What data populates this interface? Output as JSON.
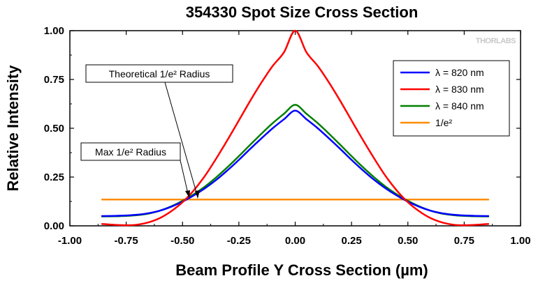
{
  "chart_data": {
    "type": "line",
    "title": "354330 Spot Size Cross Section",
    "xlabel": "Beam Profile Y Cross Section (µm)",
    "ylabel": "Relative Intensity",
    "xlim": [
      -1.0,
      1.0
    ],
    "ylim": [
      0.0,
      1.0
    ],
    "xticks": [
      "-1.00",
      "-0.75",
      "-0.50",
      "-0.25",
      "0.00",
      "0.25",
      "0.50",
      "0.75",
      "1.00"
    ],
    "yticks": [
      "0.00",
      "0.25",
      "0.50",
      "0.75",
      "1.00"
    ],
    "xtick_values": [
      -1.0,
      -0.75,
      -0.5,
      -0.25,
      0.0,
      0.25,
      0.5,
      0.75,
      1.0
    ],
    "ytick_values": [
      0.0,
      0.25,
      0.5,
      0.75,
      1.0
    ],
    "x": [
      -0.86,
      -0.8,
      -0.75,
      -0.7,
      -0.65,
      -0.6,
      -0.55,
      -0.5,
      -0.45,
      -0.4,
      -0.35,
      -0.3,
      -0.25,
      -0.2,
      -0.15,
      -0.1,
      -0.05,
      0.0,
      0.05,
      0.1,
      0.15,
      0.2,
      0.25,
      0.3,
      0.35,
      0.4,
      0.45,
      0.5,
      0.55,
      0.6,
      0.65,
      0.7,
      0.75,
      0.8,
      0.86
    ],
    "series": [
      {
        "name": "λ = 820 nm",
        "color": "#0000ff",
        "values": [
          0.05,
          0.051,
          0.053,
          0.057,
          0.065,
          0.078,
          0.098,
          0.124,
          0.156,
          0.193,
          0.236,
          0.285,
          0.338,
          0.394,
          0.448,
          0.5,
          0.546,
          0.59,
          0.546,
          0.5,
          0.448,
          0.394,
          0.338,
          0.285,
          0.236,
          0.193,
          0.156,
          0.124,
          0.098,
          0.078,
          0.065,
          0.057,
          0.053,
          0.051,
          0.05
        ]
      },
      {
        "name": "λ = 830 nm",
        "color": "#ff0000",
        "values": [
          0.01,
          0.005,
          0.003,
          0.006,
          0.018,
          0.04,
          0.075,
          0.121,
          0.182,
          0.257,
          0.346,
          0.441,
          0.54,
          0.64,
          0.734,
          0.819,
          0.889,
          1.0,
          0.889,
          0.819,
          0.734,
          0.64,
          0.54,
          0.441,
          0.346,
          0.257,
          0.182,
          0.121,
          0.075,
          0.04,
          0.018,
          0.006,
          0.003,
          0.005,
          0.01
        ]
      },
      {
        "name": "λ = 840 nm",
        "color": "#008000",
        "values": [
          0.048,
          0.049,
          0.051,
          0.055,
          0.063,
          0.078,
          0.1,
          0.128,
          0.162,
          0.202,
          0.249,
          0.301,
          0.357,
          0.415,
          0.472,
          0.526,
          0.574,
          0.62,
          0.574,
          0.526,
          0.472,
          0.415,
          0.357,
          0.301,
          0.249,
          0.202,
          0.162,
          0.128,
          0.1,
          0.078,
          0.063,
          0.055,
          0.051,
          0.049,
          0.048
        ]
      },
      {
        "name": "1/e²",
        "color": "#ff8c00",
        "values": [
          0.135,
          0.135,
          0.135,
          0.135,
          0.135,
          0.135,
          0.135,
          0.135,
          0.135,
          0.135,
          0.135,
          0.135,
          0.135,
          0.135,
          0.135,
          0.135,
          0.135,
          0.135,
          0.135,
          0.135,
          0.135,
          0.135,
          0.135,
          0.135,
          0.135,
          0.135,
          0.135,
          0.135,
          0.135,
          0.135,
          0.135,
          0.135,
          0.135,
          0.135,
          0.135
        ]
      }
    ],
    "legend": {
      "position": "right",
      "entries": [
        {
          "prefix": "λ",
          "text": " = 820 nm",
          "color": "#0000ff"
        },
        {
          "prefix": "λ",
          "text": " = 830 nm",
          "color": "#ff0000"
        },
        {
          "prefix": "λ",
          "text": " = 840 nm",
          "color": "#008000"
        },
        {
          "prefix": "",
          "text": "1/e²",
          "color": "#ff8c00"
        }
      ]
    },
    "annotations": [
      {
        "label": "Theoretical 1/e² Radius",
        "target_x": -0.47,
        "target_y": 0.15
      },
      {
        "label": "Max 1/e² Radius",
        "target_x": -0.5,
        "target_y": 0.135
      }
    ],
    "watermark": "THORLABS"
  }
}
